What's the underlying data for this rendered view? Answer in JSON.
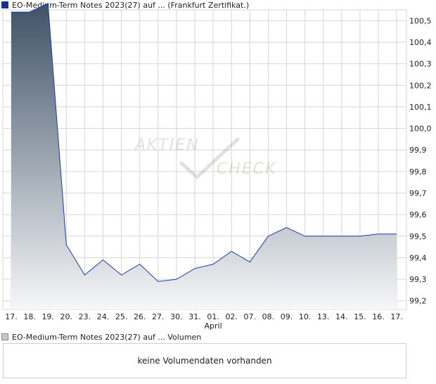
{
  "price_legend": "EO-Medium-Term Notes 2023(27) auf ... (Frankfurt Zertifikat.)",
  "volume_legend": "EO-Medium-Term Notes 2023(27) auf ... Volumen",
  "volume_message": "keine Volumendaten vorhanden",
  "watermark": {
    "top": "AKTIEN",
    "bottom": "CHECK"
  },
  "colors": {
    "line": "#1c3aa8",
    "fill_top": "#3f5266",
    "fill_bottom": "#f6f7f9",
    "grid": "#d6d6d6"
  },
  "chart_data": {
    "type": "area",
    "title": "",
    "xlabel": "",
    "ylabel": "",
    "ylim": [
      99.16,
      100.55
    ],
    "y_ticks": [
      "100,5",
      "100,4",
      "100,3",
      "100,2",
      "100,1",
      "100,0",
      "99,9",
      "99,8",
      "99,7",
      "99,6",
      "99,5",
      "99,4",
      "99,3",
      "99,2"
    ],
    "y_tick_values": [
      100.5,
      100.4,
      100.3,
      100.2,
      100.1,
      100.0,
      99.9,
      99.8,
      99.7,
      99.6,
      99.5,
      99.4,
      99.3,
      99.2
    ],
    "x_ticks": [
      "17.",
      "18.",
      "19.",
      "20.",
      "23.",
      "24.",
      "25.",
      "26.",
      "27.",
      "30.",
      "31.",
      "01.",
      "02.",
      "07.",
      "08.",
      "09.",
      "10.",
      "13.",
      "14.",
      "15.",
      "16.",
      "17."
    ],
    "month_labels": [
      {
        "tick_index": 11,
        "label": "April"
      }
    ],
    "grid": true,
    "series": [
      {
        "values": [
          100.54,
          100.54,
          100.58,
          99.46,
          99.32,
          99.39,
          99.32,
          99.37,
          99.29,
          99.3,
          99.35,
          99.37,
          99.43,
          99.38,
          99.5,
          99.54,
          99.5,
          99.5,
          99.5,
          99.5,
          99.51,
          99.51
        ]
      }
    ]
  }
}
